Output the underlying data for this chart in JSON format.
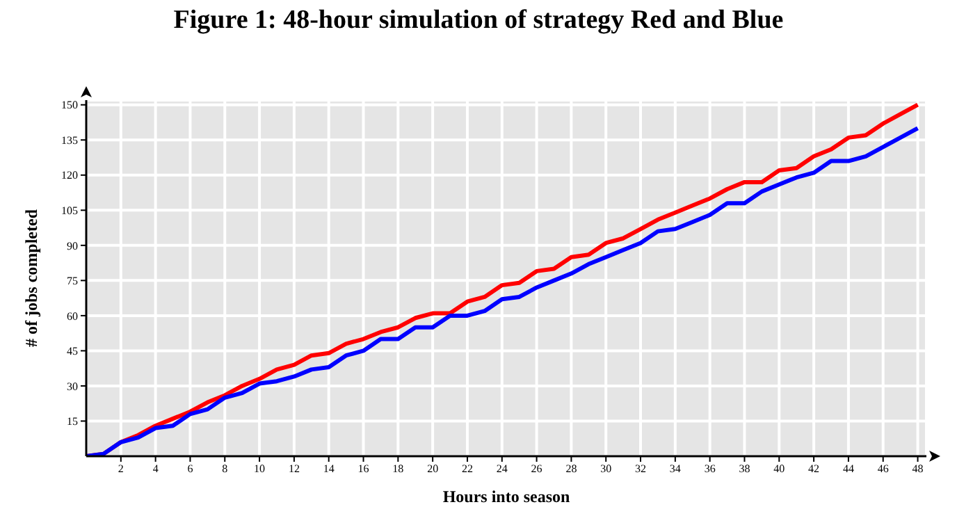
{
  "chart_data": {
    "type": "line",
    "title": "Figure 1: 48-hour simulation of strategy Red and Blue",
    "xlabel": "Hours into season",
    "ylabel": "# of jobs completed",
    "x": [
      0,
      1,
      2,
      3,
      4,
      5,
      6,
      7,
      8,
      9,
      10,
      11,
      12,
      13,
      14,
      15,
      16,
      17,
      18,
      19,
      20,
      21,
      22,
      23,
      24,
      25,
      26,
      27,
      28,
      29,
      30,
      31,
      32,
      33,
      34,
      35,
      36,
      37,
      38,
      39,
      40,
      41,
      42,
      43,
      44,
      45,
      46,
      47,
      48
    ],
    "series": [
      {
        "color": "#ff0000",
        "values": [
          0,
          1,
          6,
          9,
          13,
          16,
          19,
          23,
          26,
          30,
          33,
          37,
          39,
          43,
          44,
          48,
          50,
          53,
          55,
          59,
          61,
          61,
          66,
          68,
          73,
          74,
          79,
          80,
          85,
          86,
          91,
          93,
          97,
          101,
          104,
          107,
          110,
          114,
          117,
          117,
          122,
          123,
          128,
          131,
          136,
          137,
          142,
          146,
          150
        ]
      },
      {
        "color": "#0000ff",
        "values": [
          0,
          1,
          6,
          8,
          12,
          13,
          18,
          20,
          25,
          27,
          31,
          32,
          34,
          37,
          38,
          43,
          45,
          50,
          50,
          55,
          55,
          60,
          60,
          62,
          67,
          68,
          72,
          75,
          78,
          82,
          85,
          88,
          91,
          96,
          97,
          100,
          103,
          108,
          108,
          113,
          116,
          119,
          121,
          126,
          126,
          128,
          132,
          136,
          140
        ]
      }
    ],
    "xlim": [
      0,
      48.5
    ],
    "xticks": [
      2,
      4,
      6,
      8,
      10,
      12,
      14,
      16,
      18,
      20,
      22,
      24,
      26,
      28,
      30,
      32,
      34,
      36,
      38,
      40,
      42,
      44,
      46,
      48
    ],
    "ylim": [
      0,
      152
    ],
    "yticks": [
      15,
      30,
      45,
      60,
      75,
      90,
      105,
      120,
      135,
      150
    ],
    "grid": true,
    "marker": "none",
    "line_style": "solid"
  }
}
